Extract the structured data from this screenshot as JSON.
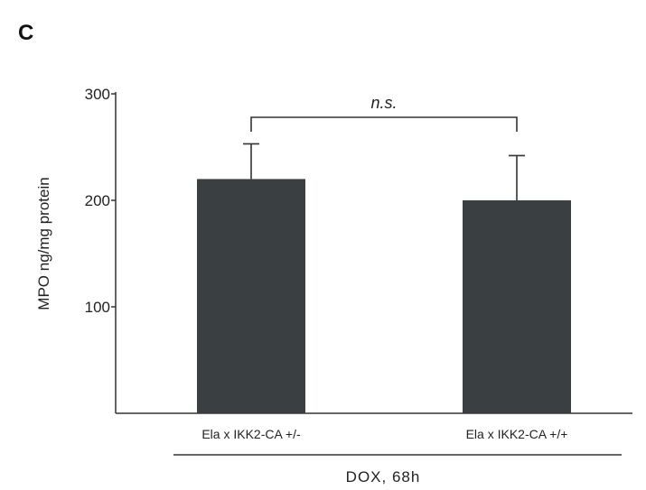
{
  "panel_label": "C",
  "chart_data": {
    "type": "bar",
    "categories": [
      "Ela x IKK2-CA +/-",
      "Ela x IKK2-CA +/+"
    ],
    "values": [
      220,
      200
    ],
    "errors": [
      33,
      42
    ],
    "ylabel": "MPO ng/mg protein",
    "ylim": [
      0,
      300
    ],
    "yticks": [
      100,
      200,
      300
    ],
    "bar_color": "#3a3f41",
    "significance": {
      "between": [
        0,
        1
      ],
      "label": "n.s."
    },
    "group_label": "DOX, 68h",
    "grid": false
  }
}
